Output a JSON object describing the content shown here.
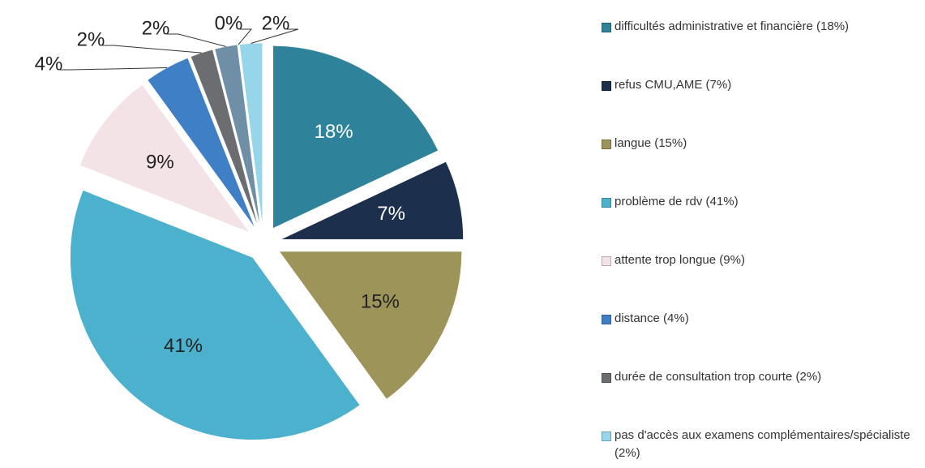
{
  "chart_data": {
    "type": "pie",
    "categories": [
      "difficultés administrative et financière (18%)",
      "refus CMU,AME (7%)",
      "langue (15%)",
      "problème de rdv (41%)",
      "attente trop longue (9%)",
      "distance (4%)",
      "durée de consultation trop courte (2%)",
      null,
      null,
      "pas d'accès aux examens complémentaires/spécialiste (2%)"
    ],
    "values": [
      18,
      7,
      15,
      41,
      9,
      4,
      2,
      2,
      0,
      2
    ],
    "value_labels": [
      "18%",
      "7%",
      "15%",
      "41%",
      "9%",
      "4%",
      "2%",
      "2%",
      "0%",
      "2%"
    ],
    "colors": [
      "#2e8299",
      "#1c2f4c",
      "#9d9459",
      "#4cb1cd",
      "#f3e3e6",
      "#3f7fc6",
      "#6b6d70",
      "#6f8fa6",
      "#8fcde0",
      "#96d5ea"
    ],
    "legend": "right"
  }
}
